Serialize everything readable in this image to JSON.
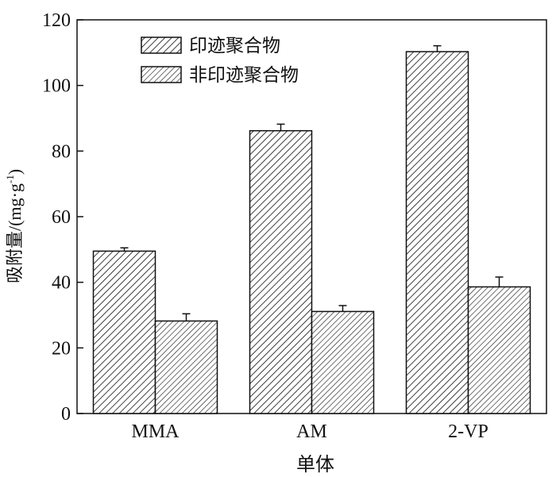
{
  "chart_data": {
    "type": "bar",
    "title": "",
    "xlabel": "单体",
    "ylabel": "吸附量/(mg·g",
    "ylabel_superscript": "-1",
    "ylabel_close": ")",
    "categories": [
      "MMA",
      "AM",
      "2-VP"
    ],
    "ylim": [
      0,
      120
    ],
    "yticks": [
      0,
      20,
      40,
      60,
      80,
      100,
      120
    ],
    "series": [
      {
        "name": "印迹聚合物",
        "values": [
          49.5,
          86.2,
          110.3
        ],
        "errors": [
          1.0,
          2.0,
          1.8
        ],
        "pattern": "dense-diagonal-hatch"
      },
      {
        "name": "非印迹聚合物",
        "values": [
          28.2,
          31.1,
          38.6
        ],
        "errors": [
          2.2,
          1.8,
          3.0
        ],
        "pattern": "diagonal-hatch"
      }
    ],
    "grid": false,
    "legend_position": "top-left",
    "colors": {
      "stroke": "#111111",
      "fill": "#ffffff"
    }
  }
}
